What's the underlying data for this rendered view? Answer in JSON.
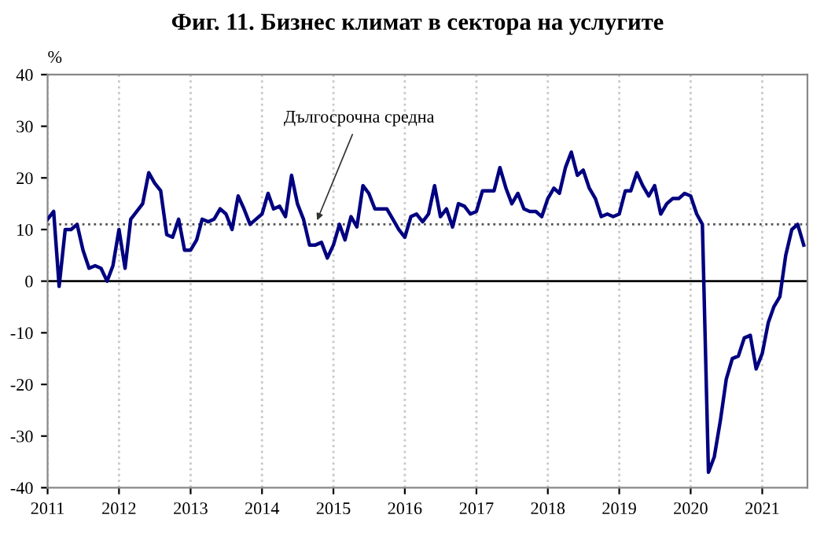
{
  "chart_data": {
    "type": "line",
    "title": "Фиг. 11. Бизнес климат в сектора на услугите",
    "ylabel": "%",
    "x": [
      "2011-01",
      "2011-02",
      "2011-03",
      "2011-04",
      "2011-05",
      "2011-06",
      "2011-07",
      "2011-08",
      "2011-09",
      "2011-10",
      "2011-11",
      "2011-12",
      "2012-01",
      "2012-02",
      "2012-03",
      "2012-04",
      "2012-05",
      "2012-06",
      "2012-07",
      "2012-08",
      "2012-09",
      "2012-10",
      "2012-11",
      "2012-12",
      "2013-01",
      "2013-02",
      "2013-03",
      "2013-04",
      "2013-05",
      "2013-06",
      "2013-07",
      "2013-08",
      "2013-09",
      "2013-10",
      "2013-11",
      "2013-12",
      "2014-01",
      "2014-02",
      "2014-03",
      "2014-04",
      "2014-05",
      "2014-06",
      "2014-07",
      "2014-08",
      "2014-09",
      "2014-10",
      "2014-11",
      "2014-12",
      "2015-01",
      "2015-02",
      "2015-03",
      "2015-04",
      "2015-05",
      "2015-06",
      "2015-07",
      "2015-08",
      "2015-09",
      "2015-10",
      "2015-11",
      "2015-12",
      "2016-01",
      "2016-02",
      "2016-03",
      "2016-04",
      "2016-05",
      "2016-06",
      "2016-07",
      "2016-08",
      "2016-09",
      "2016-10",
      "2016-11",
      "2016-12",
      "2017-01",
      "2017-02",
      "2017-03",
      "2017-04",
      "2017-05",
      "2017-06",
      "2017-07",
      "2017-08",
      "2017-09",
      "2017-10",
      "2017-11",
      "2017-12",
      "2018-01",
      "2018-02",
      "2018-03",
      "2018-04",
      "2018-05",
      "2018-06",
      "2018-07",
      "2018-08",
      "2018-09",
      "2018-10",
      "2018-11",
      "2018-12",
      "2019-01",
      "2019-02",
      "2019-03",
      "2019-04",
      "2019-05",
      "2019-06",
      "2019-07",
      "2019-08",
      "2019-09",
      "2019-10",
      "2019-11",
      "2019-12",
      "2020-01",
      "2020-02",
      "2020-03",
      "2020-04",
      "2020-05",
      "2020-06",
      "2020-07",
      "2020-08",
      "2020-09",
      "2020-10",
      "2020-11",
      "2020-12",
      "2021-01",
      "2021-02",
      "2021-03",
      "2021-04",
      "2021-05",
      "2021-06",
      "2021-07",
      "2021-08"
    ],
    "series": [
      {
        "color": "#000080",
        "values": [
          12,
          13.5,
          -1,
          10,
          10,
          11,
          6,
          2.5,
          3,
          2.5,
          0,
          3,
          10,
          2.5,
          12,
          13.5,
          15,
          21,
          19,
          17.5,
          9,
          8.5,
          12,
          6,
          6,
          8,
          12,
          11.5,
          12,
          14,
          13,
          10,
          16.5,
          14,
          11,
          12,
          13,
          17,
          14,
          14.5,
          12.5,
          20.5,
          15,
          12,
          7,
          7,
          7.5,
          4.5,
          7,
          11,
          8,
          12.5,
          10.5,
          18.5,
          17,
          14,
          14,
          14,
          12,
          10,
          8.5,
          12.5,
          13,
          11.5,
          13,
          18.5,
          12.5,
          14,
          10.5,
          15,
          14.5,
          13,
          13.5,
          17.5,
          17.5,
          17.5,
          22,
          18,
          15,
          17,
          14,
          13.5,
          13.5,
          12.5,
          16,
          18,
          17,
          22,
          25,
          20.5,
          21.5,
          18,
          16,
          12.5,
          13,
          12.5,
          13,
          17.5,
          17.5,
          21,
          18.5,
          16.5,
          18.5,
          13,
          15,
          16,
          16,
          17,
          16.5,
          13,
          11,
          -37,
          -34,
          -27,
          -19,
          -15,
          -14.5,
          -11,
          -10.5,
          -17,
          -14,
          -8,
          -5,
          -3,
          5,
          10,
          11,
          7
        ]
      }
    ],
    "xlim": [
      "2011-01-01",
      "2021-08-20"
    ],
    "xticks": [
      "2011",
      "2012",
      "2013",
      "2014",
      "2015",
      "2016",
      "2017",
      "2018",
      "2019",
      "2020",
      "2021"
    ],
    "ylim": [
      -40,
      40
    ],
    "yticks": [
      -40,
      -30,
      -20,
      -10,
      0,
      10,
      20,
      30,
      40
    ],
    "grid": "x",
    "ref_lines": [
      {
        "axis": "y",
        "value": 11,
        "color": "#555555",
        "line_style": "dotted"
      },
      {
        "axis": "y",
        "value": 0,
        "color": "#000000",
        "line_style": "solid"
      }
    ],
    "annotations": [
      {
        "text": "Дългосрочна средна",
        "x": "2014-10",
        "y": 11
      }
    ]
  }
}
